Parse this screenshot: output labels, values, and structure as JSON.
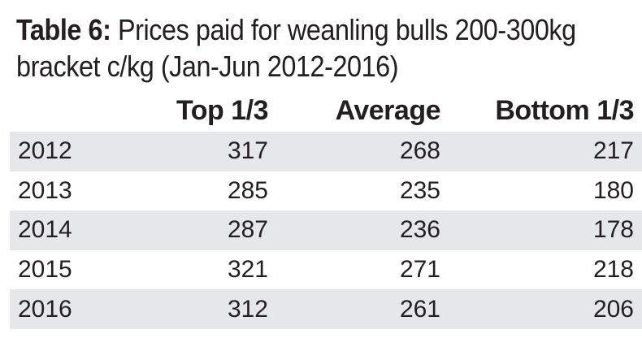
{
  "title": {
    "prefix": "Table 6:",
    "text": "Prices paid for weanling bulls 200-300kg bracket c/kg (Jan-Jun 2012-2016)"
  },
  "chart_data": {
    "type": "table",
    "columns": [
      "",
      "Top 1/3",
      "Average",
      "Bottom 1/3"
    ],
    "rows": [
      [
        "2012",
        "317",
        "268",
        "217"
      ],
      [
        "2013",
        "285",
        "235",
        "180"
      ],
      [
        "2014",
        "287",
        "236",
        "178"
      ],
      [
        "2015",
        "321",
        "271",
        "218"
      ],
      [
        "2016",
        "312",
        "261",
        "206"
      ]
    ],
    "colors": {
      "stripe": "#e6e7e8",
      "text": "#231f20"
    }
  }
}
